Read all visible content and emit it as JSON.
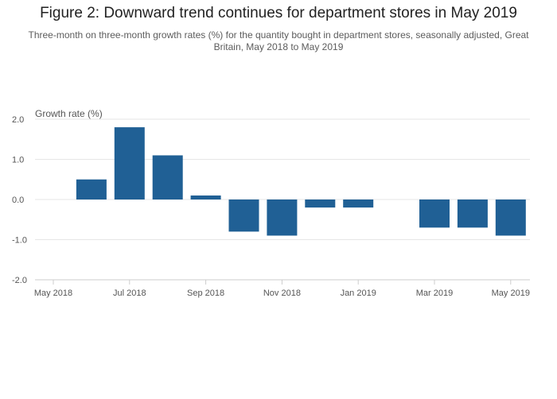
{
  "chart_data": {
    "type": "bar",
    "title": "Figure 2: Downward trend continues for department stores in May 2019",
    "subtitle": "Three-month on three-month growth rates (%) for the quantity bought in department stores, seasonally adjusted, Great Britain, May 2018 to May 2019",
    "ylabel": "Growth rate (%)",
    "xlabel": "",
    "categories": [
      "May 2018",
      "Jun 2018",
      "Jul 2018",
      "Aug 2018",
      "Sep 2018",
      "Oct 2018",
      "Nov 2018",
      "Dec 2018",
      "Jan 2019",
      "Feb 2019",
      "Mar 2019",
      "Apr 2019",
      "May 2019"
    ],
    "values": [
      0.0,
      0.5,
      1.8,
      1.1,
      0.1,
      -0.8,
      -0.9,
      -0.2,
      -0.2,
      0.0,
      -0.7,
      -0.7,
      -0.9
    ],
    "x_tick_labels": [
      "May 2018",
      "Jul 2018",
      "Sep 2018",
      "Nov 2018",
      "Jan 2019",
      "Mar 2019",
      "May 2019"
    ],
    "y_ticks": [
      -2.0,
      -1.0,
      0.0,
      1.0,
      2.0
    ],
    "y_tick_labels": [
      "-2.0",
      "-1.0",
      "0.0",
      "1.0",
      "2.0"
    ],
    "ylim": [
      -2.0,
      2.0
    ],
    "grid": true,
    "legend": "none",
    "bar_color": "#206095",
    "grid_color": "#e6e6e6",
    "axis_color": "#cccccc"
  }
}
